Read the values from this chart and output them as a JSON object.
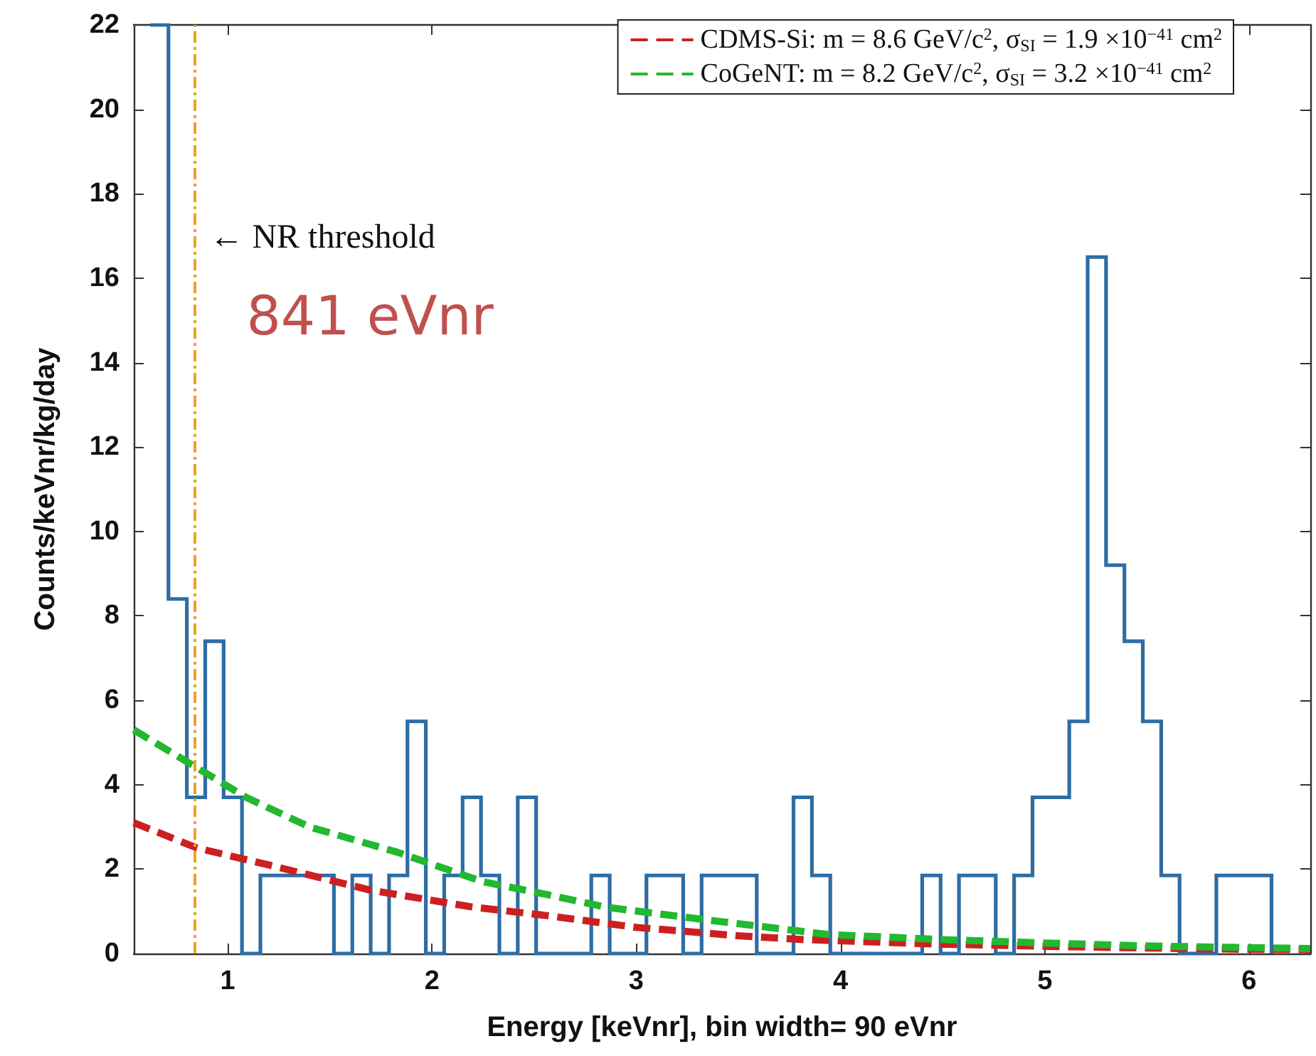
{
  "chart_data": {
    "type": "histogram",
    "xlabel": "Energy [keVnr], bin width= 90 eVnr",
    "ylabel": "Counts/keVnr/kg/day",
    "xlim": [
      0.54,
      6.3
    ],
    "xticks": [
      1,
      2,
      3,
      4,
      5,
      6
    ],
    "ylim": [
      0,
      22
    ],
    "yticks": [
      0,
      2,
      4,
      6,
      8,
      10,
      12,
      14,
      16,
      18,
      20,
      22
    ],
    "legend": "top right",
    "grid": false,
    "series": [
      {
        "color": "#2e6da4",
        "bins": [
          0.62,
          0.71,
          0.8,
          0.89,
          0.98,
          1.07,
          1.16,
          1.25,
          1.34,
          1.43,
          1.52,
          1.61,
          1.7,
          1.79,
          1.88,
          1.97,
          2.06,
          2.15,
          2.24,
          2.33,
          2.42,
          2.51,
          2.6,
          2.69,
          2.78,
          2.87,
          2.96,
          3.05,
          3.14,
          3.23,
          3.32,
          3.41,
          3.5,
          3.59,
          3.68,
          3.77,
          3.86,
          3.95,
          4.04,
          4.13,
          4.22,
          4.31,
          4.4,
          4.49,
          4.58,
          4.67,
          4.76,
          4.85,
          4.94,
          5.03,
          5.12,
          5.21,
          5.3,
          5.39,
          5.48,
          5.57,
          5.66,
          5.75,
          5.84,
          5.93,
          6.02,
          6.11
        ],
        "values": [
          22,
          8.4,
          3.7,
          7.4,
          3.7,
          0,
          1.85,
          1.85,
          1.85,
          1.85,
          0,
          1.85,
          0,
          1.85,
          5.5,
          0,
          1.85,
          3.7,
          1.85,
          0,
          3.7,
          0,
          0,
          0,
          1.85,
          0,
          0,
          1.85,
          1.85,
          0,
          1.85,
          1.85,
          1.85,
          0,
          0,
          3.7,
          1.85,
          0,
          0,
          0,
          0,
          0,
          1.85,
          0,
          1.85,
          1.85,
          0,
          1.85,
          3.7,
          3.7,
          5.5,
          16.5,
          9.2,
          7.4,
          5.5,
          1.85,
          0,
          0,
          1.85,
          1.85,
          1.85
        ]
      },
      {
        "type": "line",
        "name": "CDMS-Si: m = 8.6 GeV/c$^{2}$, σ$_{SI}$ = 1.9 ×10$^{−41}$ cm$^{2}$",
        "color": "#cc2020",
        "line_style": "dashed",
        "marker": "none",
        "x": [
          0.54,
          0.85,
          1.2,
          1.7,
          2.2,
          2.56,
          3.0,
          3.5,
          3.82,
          4.5,
          5.0,
          5.5,
          6.0,
          6.3
        ],
        "values": [
          3.1,
          2.5,
          2.1,
          1.5,
          1.1,
          0.9,
          0.62,
          0.42,
          0.33,
          0.22,
          0.17,
          0.13,
          0.1,
          0.09
        ]
      },
      {
        "type": "line",
        "name": "CoGeNT: m = 8.2 GeV/c$^{2}$, σ$_{SI}$ = 3.2 ×10$^{−41}$ cm$^{2}$",
        "color": "#22b830",
        "line_style": "dashed",
        "marker": "none",
        "x": [
          0.54,
          0.85,
          1.09,
          1.4,
          1.83,
          2.25,
          2.56,
          2.85,
          3.34,
          3.94,
          4.5,
          5.0,
          5.5,
          6.0,
          6.3
        ],
        "values": [
          5.3,
          4.4,
          3.7,
          3.0,
          2.4,
          1.7,
          1.4,
          1.1,
          0.8,
          0.45,
          0.33,
          0.25,
          0.18,
          0.14,
          0.12
        ]
      }
    ],
    "ref_lines": [
      {
        "axis": "x",
        "value": 0.841,
        "label": "← NR threshold",
        "color": "#f0a020",
        "line_style": "dashdot"
      }
    ],
    "annotations": [
      "841 eVnr"
    ]
  }
}
